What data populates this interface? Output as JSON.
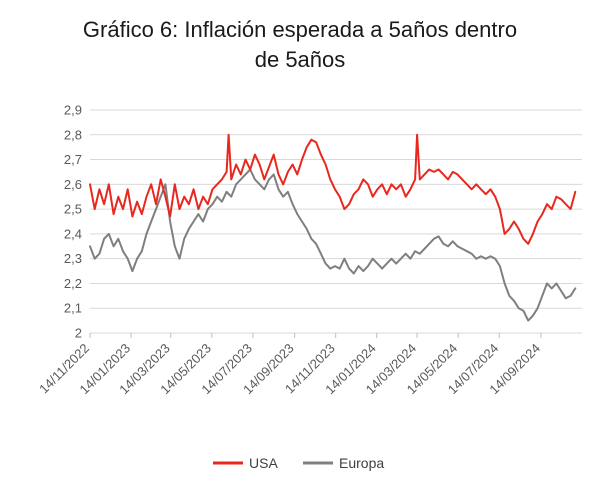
{
  "chart_data": {
    "type": "line",
    "title_lines": [
      "Gráfico 6: Inflación esperada a 5años dentro",
      "de 5años"
    ],
    "xlabel": "",
    "ylabel": "",
    "ylim": [
      2.0,
      2.9
    ],
    "ytick_labels": [
      "2",
      "2,1",
      "2,2",
      "2,3",
      "2,4",
      "2,5",
      "2,6",
      "2,7",
      "2,8",
      "2,9"
    ],
    "ytick_values": [
      2.0,
      2.1,
      2.2,
      2.3,
      2.4,
      2.5,
      2.6,
      2.7,
      2.8,
      2.9
    ],
    "xlim": [
      "2022-11-14",
      "2024-11-14"
    ],
    "xtick_labels": [
      "14/11/2022",
      "14/01/2023",
      "14/03/2023",
      "14/05/2023",
      "14/07/2023",
      "14/09/2023",
      "14/11/2023",
      "14/01/2024",
      "14/03/2024",
      "14/05/2024",
      "14/07/2024",
      "14/09/2024"
    ],
    "xtick_dates": [
      "2022-11-14",
      "2023-01-14",
      "2023-03-14",
      "2023-05-14",
      "2023-07-14",
      "2023-09-14",
      "2023-11-14",
      "2024-01-14",
      "2024-03-14",
      "2024-05-14",
      "2024-07-14",
      "2024-09-14"
    ],
    "grid": true,
    "legend": "bottom",
    "series": [
      {
        "name": "USA",
        "color": "#e8281e",
        "points": [
          [
            "2022-11-14",
            2.6
          ],
          [
            "2022-11-21",
            2.5
          ],
          [
            "2022-11-28",
            2.58
          ],
          [
            "2022-12-05",
            2.52
          ],
          [
            "2022-12-12",
            2.6
          ],
          [
            "2022-12-19",
            2.48
          ],
          [
            "2022-12-26",
            2.55
          ],
          [
            "2023-01-02",
            2.5
          ],
          [
            "2023-01-09",
            2.58
          ],
          [
            "2023-01-16",
            2.47
          ],
          [
            "2023-01-23",
            2.53
          ],
          [
            "2023-01-30",
            2.48
          ],
          [
            "2023-02-06",
            2.55
          ],
          [
            "2023-02-13",
            2.6
          ],
          [
            "2023-02-20",
            2.52
          ],
          [
            "2023-02-27",
            2.62
          ],
          [
            "2023-03-06",
            2.55
          ],
          [
            "2023-03-13",
            2.47
          ],
          [
            "2023-03-20",
            2.6
          ],
          [
            "2023-03-27",
            2.5
          ],
          [
            "2023-04-03",
            2.55
          ],
          [
            "2023-04-10",
            2.52
          ],
          [
            "2023-04-17",
            2.58
          ],
          [
            "2023-04-24",
            2.5
          ],
          [
            "2023-05-01",
            2.55
          ],
          [
            "2023-05-08",
            2.52
          ],
          [
            "2023-05-15",
            2.58
          ],
          [
            "2023-05-22",
            2.6
          ],
          [
            "2023-05-29",
            2.62
          ],
          [
            "2023-06-05",
            2.65
          ],
          [
            "2023-06-08",
            2.8
          ],
          [
            "2023-06-12",
            2.62
          ],
          [
            "2023-06-19",
            2.68
          ],
          [
            "2023-06-26",
            2.64
          ],
          [
            "2023-07-03",
            2.7
          ],
          [
            "2023-07-10",
            2.66
          ],
          [
            "2023-07-17",
            2.72
          ],
          [
            "2023-07-24",
            2.68
          ],
          [
            "2023-07-31",
            2.62
          ],
          [
            "2023-08-07",
            2.67
          ],
          [
            "2023-08-14",
            2.72
          ],
          [
            "2023-08-21",
            2.64
          ],
          [
            "2023-08-28",
            2.6
          ],
          [
            "2023-09-04",
            2.65
          ],
          [
            "2023-09-11",
            2.68
          ],
          [
            "2023-09-18",
            2.64
          ],
          [
            "2023-09-25",
            2.7
          ],
          [
            "2023-10-02",
            2.75
          ],
          [
            "2023-10-09",
            2.78
          ],
          [
            "2023-10-16",
            2.77
          ],
          [
            "2023-10-23",
            2.72
          ],
          [
            "2023-10-30",
            2.68
          ],
          [
            "2023-11-06",
            2.62
          ],
          [
            "2023-11-13",
            2.58
          ],
          [
            "2023-11-20",
            2.55
          ],
          [
            "2023-11-27",
            2.5
          ],
          [
            "2023-12-04",
            2.52
          ],
          [
            "2023-12-11",
            2.56
          ],
          [
            "2023-12-18",
            2.58
          ],
          [
            "2023-12-25",
            2.62
          ],
          [
            "2024-01-01",
            2.6
          ],
          [
            "2024-01-08",
            2.55
          ],
          [
            "2024-01-15",
            2.58
          ],
          [
            "2024-01-22",
            2.6
          ],
          [
            "2024-01-29",
            2.56
          ],
          [
            "2024-02-05",
            2.6
          ],
          [
            "2024-02-12",
            2.58
          ],
          [
            "2024-02-19",
            2.6
          ],
          [
            "2024-02-26",
            2.55
          ],
          [
            "2024-03-04",
            2.58
          ],
          [
            "2024-03-11",
            2.62
          ],
          [
            "2024-03-14",
            2.8
          ],
          [
            "2024-03-18",
            2.62
          ],
          [
            "2024-03-25",
            2.64
          ],
          [
            "2024-04-01",
            2.66
          ],
          [
            "2024-04-08",
            2.65
          ],
          [
            "2024-04-15",
            2.66
          ],
          [
            "2024-04-22",
            2.64
          ],
          [
            "2024-04-29",
            2.62
          ],
          [
            "2024-05-06",
            2.65
          ],
          [
            "2024-05-13",
            2.64
          ],
          [
            "2024-05-20",
            2.62
          ],
          [
            "2024-05-27",
            2.6
          ],
          [
            "2024-06-03",
            2.58
          ],
          [
            "2024-06-10",
            2.6
          ],
          [
            "2024-06-17",
            2.58
          ],
          [
            "2024-06-24",
            2.56
          ],
          [
            "2024-07-01",
            2.58
          ],
          [
            "2024-07-08",
            2.55
          ],
          [
            "2024-07-15",
            2.5
          ],
          [
            "2024-07-22",
            2.4
          ],
          [
            "2024-07-29",
            2.42
          ],
          [
            "2024-08-05",
            2.45
          ],
          [
            "2024-08-12",
            2.42
          ],
          [
            "2024-08-19",
            2.38
          ],
          [
            "2024-08-26",
            2.36
          ],
          [
            "2024-09-02",
            2.4
          ],
          [
            "2024-09-09",
            2.45
          ],
          [
            "2024-09-16",
            2.48
          ],
          [
            "2024-09-23",
            2.52
          ],
          [
            "2024-09-30",
            2.5
          ],
          [
            "2024-10-07",
            2.55
          ],
          [
            "2024-10-14",
            2.54
          ],
          [
            "2024-10-21",
            2.52
          ],
          [
            "2024-10-28",
            2.5
          ],
          [
            "2024-11-04",
            2.57
          ]
        ]
      },
      {
        "name": "Europa",
        "color": "#7f7f7f",
        "points": [
          [
            "2022-11-14",
            2.35
          ],
          [
            "2022-11-21",
            2.3
          ],
          [
            "2022-11-28",
            2.32
          ],
          [
            "2022-12-05",
            2.38
          ],
          [
            "2022-12-12",
            2.4
          ],
          [
            "2022-12-19",
            2.35
          ],
          [
            "2022-12-26",
            2.38
          ],
          [
            "2023-01-02",
            2.33
          ],
          [
            "2023-01-09",
            2.3
          ],
          [
            "2023-01-16",
            2.25
          ],
          [
            "2023-01-23",
            2.3
          ],
          [
            "2023-01-30",
            2.33
          ],
          [
            "2023-02-06",
            2.4
          ],
          [
            "2023-02-13",
            2.45
          ],
          [
            "2023-02-20",
            2.5
          ],
          [
            "2023-02-27",
            2.55
          ],
          [
            "2023-03-06",
            2.6
          ],
          [
            "2023-03-13",
            2.45
          ],
          [
            "2023-03-20",
            2.35
          ],
          [
            "2023-03-27",
            2.3
          ],
          [
            "2023-04-03",
            2.38
          ],
          [
            "2023-04-10",
            2.42
          ],
          [
            "2023-04-17",
            2.45
          ],
          [
            "2023-04-24",
            2.48
          ],
          [
            "2023-05-01",
            2.45
          ],
          [
            "2023-05-08",
            2.5
          ],
          [
            "2023-05-15",
            2.52
          ],
          [
            "2023-05-22",
            2.55
          ],
          [
            "2023-05-29",
            2.53
          ],
          [
            "2023-06-05",
            2.57
          ],
          [
            "2023-06-12",
            2.55
          ],
          [
            "2023-06-19",
            2.6
          ],
          [
            "2023-06-26",
            2.62
          ],
          [
            "2023-07-03",
            2.64
          ],
          [
            "2023-07-10",
            2.66
          ],
          [
            "2023-07-17",
            2.62
          ],
          [
            "2023-07-24",
            2.6
          ],
          [
            "2023-07-31",
            2.58
          ],
          [
            "2023-08-07",
            2.62
          ],
          [
            "2023-08-14",
            2.64
          ],
          [
            "2023-08-21",
            2.58
          ],
          [
            "2023-08-28",
            2.55
          ],
          [
            "2023-09-04",
            2.57
          ],
          [
            "2023-09-11",
            2.52
          ],
          [
            "2023-09-18",
            2.48
          ],
          [
            "2023-09-25",
            2.45
          ],
          [
            "2023-10-02",
            2.42
          ],
          [
            "2023-10-09",
            2.38
          ],
          [
            "2023-10-16",
            2.36
          ],
          [
            "2023-10-23",
            2.32
          ],
          [
            "2023-10-30",
            2.28
          ],
          [
            "2023-11-06",
            2.26
          ],
          [
            "2023-11-13",
            2.27
          ],
          [
            "2023-11-20",
            2.26
          ],
          [
            "2023-11-27",
            2.3
          ],
          [
            "2023-12-04",
            2.26
          ],
          [
            "2023-12-11",
            2.24
          ],
          [
            "2023-12-18",
            2.27
          ],
          [
            "2023-12-25",
            2.25
          ],
          [
            "2024-01-01",
            2.27
          ],
          [
            "2024-01-08",
            2.3
          ],
          [
            "2024-01-15",
            2.28
          ],
          [
            "2024-01-22",
            2.26
          ],
          [
            "2024-01-29",
            2.28
          ],
          [
            "2024-02-05",
            2.3
          ],
          [
            "2024-02-12",
            2.28
          ],
          [
            "2024-02-19",
            2.3
          ],
          [
            "2024-02-26",
            2.32
          ],
          [
            "2024-03-04",
            2.3
          ],
          [
            "2024-03-11",
            2.33
          ],
          [
            "2024-03-18",
            2.32
          ],
          [
            "2024-03-25",
            2.34
          ],
          [
            "2024-04-01",
            2.36
          ],
          [
            "2024-04-08",
            2.38
          ],
          [
            "2024-04-15",
            2.39
          ],
          [
            "2024-04-22",
            2.36
          ],
          [
            "2024-04-29",
            2.35
          ],
          [
            "2024-05-06",
            2.37
          ],
          [
            "2024-05-13",
            2.35
          ],
          [
            "2024-05-20",
            2.34
          ],
          [
            "2024-05-27",
            2.33
          ],
          [
            "2024-06-03",
            2.32
          ],
          [
            "2024-06-10",
            2.3
          ],
          [
            "2024-06-17",
            2.31
          ],
          [
            "2024-06-24",
            2.3
          ],
          [
            "2024-07-01",
            2.31
          ],
          [
            "2024-07-08",
            2.3
          ],
          [
            "2024-07-15",
            2.27
          ],
          [
            "2024-07-22",
            2.2
          ],
          [
            "2024-07-29",
            2.15
          ],
          [
            "2024-08-05",
            2.13
          ],
          [
            "2024-08-12",
            2.1
          ],
          [
            "2024-08-19",
            2.09
          ],
          [
            "2024-08-26",
            2.05
          ],
          [
            "2024-09-02",
            2.07
          ],
          [
            "2024-09-09",
            2.1
          ],
          [
            "2024-09-16",
            2.15
          ],
          [
            "2024-09-23",
            2.2
          ],
          [
            "2024-09-30",
            2.18
          ],
          [
            "2024-10-07",
            2.2
          ],
          [
            "2024-10-14",
            2.17
          ],
          [
            "2024-10-21",
            2.14
          ],
          [
            "2024-10-28",
            2.15
          ],
          [
            "2024-11-04",
            2.18
          ]
        ]
      }
    ]
  }
}
